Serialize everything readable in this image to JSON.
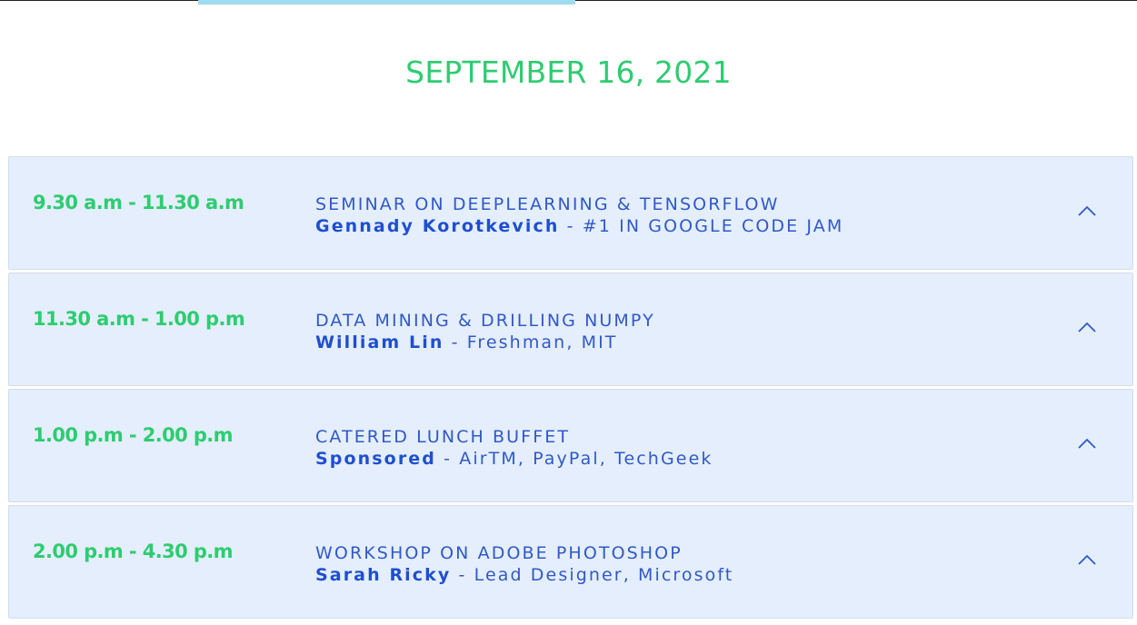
{
  "date_heading": "SEPTEMBER 16, 2021",
  "colors": {
    "accent_green": "#2ecc71",
    "text_blue": "#3159c7",
    "row_background": "#e4eefc"
  },
  "sessions": [
    {
      "time": "9.30 a.m - 11.30 a.m",
      "title": "SEMINAR ON DEEPLEARNING & TENSORFLOW",
      "speaker": "Gennady Korotkevich",
      "separator": " - ",
      "role": "#1 IN GOOGLE CODE JAM",
      "icon": "chevron-up-icon"
    },
    {
      "time": "11.30 a.m - 1.00 p.m",
      "title": "DATA MINING & DRILLING NUMPY",
      "speaker": "William Lin",
      "separator": " - ",
      "role": "Freshman, MIT",
      "icon": "chevron-up-icon"
    },
    {
      "time": "1.00 p.m - 2.00 p.m",
      "title": "CATERED LUNCH BUFFET",
      "speaker": "Sponsored",
      "separator": " - ",
      "role": "AirTM, PayPal, TechGeek",
      "icon": "chevron-up-icon"
    },
    {
      "time": "2.00 p.m - 4.30 p.m",
      "title": "WORKSHOP ON ADOBE PHOTOSHOP",
      "speaker": "Sarah Ricky",
      "separator": " - ",
      "role": "Lead Designer, Microsoft",
      "icon": "chevron-up-icon"
    }
  ]
}
